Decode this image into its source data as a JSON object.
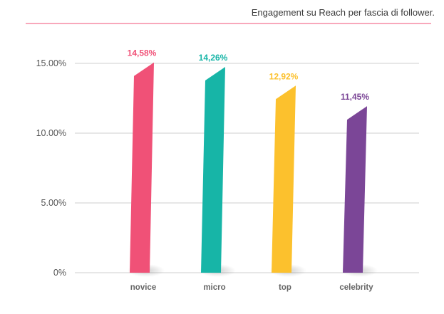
{
  "chart_data": {
    "type": "bar",
    "title": "Engagement su Reach per fascia di follower.",
    "categories": [
      "novice",
      "micro",
      "top",
      "celebrity"
    ],
    "values": [
      14.58,
      14.26,
      12.92,
      11.45
    ],
    "data_labels": [
      "14,58%",
      "14,26%",
      "12,92%",
      "11,45%"
    ],
    "colors": [
      "#f05177",
      "#17b5a7",
      "#fcc12d",
      "#7b4697"
    ],
    "yticks": [
      0,
      5,
      10,
      15
    ],
    "ytick_labels": [
      "0%",
      "5.00%",
      "10.00%",
      "15.00%"
    ],
    "ylim": [
      0,
      15
    ],
    "xlabel": "",
    "ylabel": "",
    "grid": true,
    "accent_line_color": "#f05177"
  }
}
